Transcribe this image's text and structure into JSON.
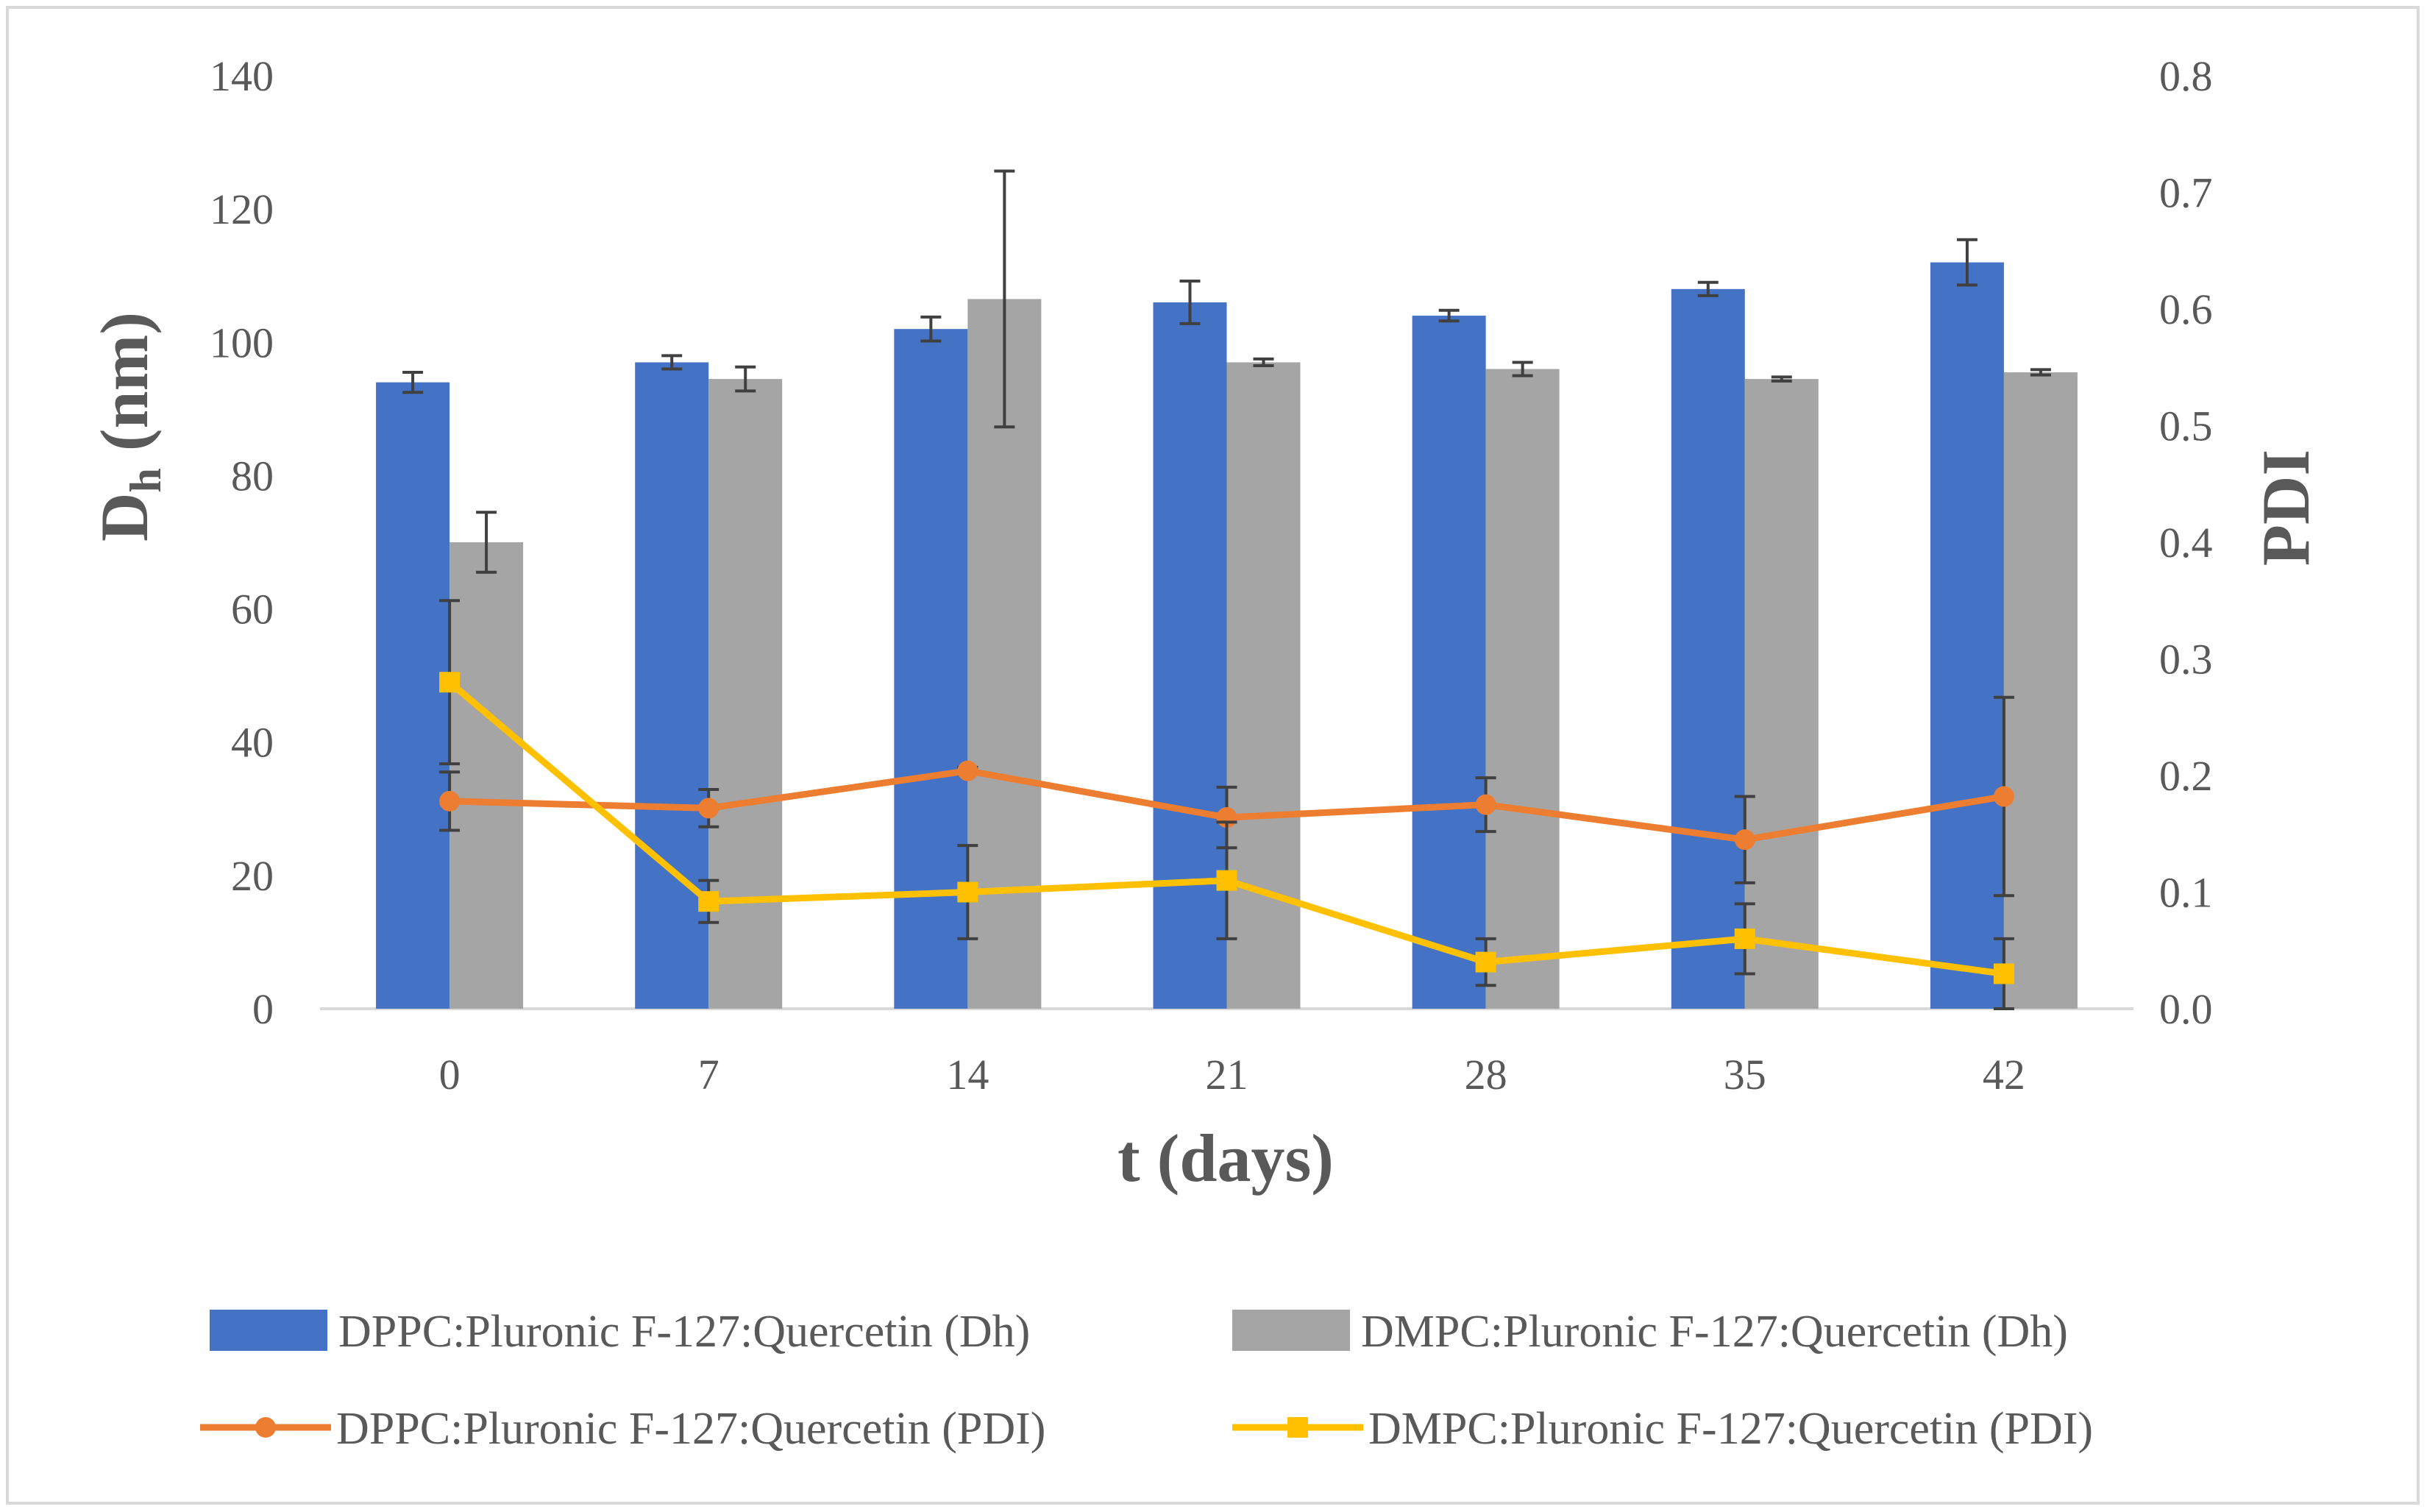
{
  "chart_data": {
    "type": "bar",
    "title": "",
    "xlabel": "t (days)",
    "ylabel": {
      "main": "D",
      "sub": "h",
      "suffix": " (nm)"
    },
    "y2label": "PDI",
    "categories": [
      "0",
      "7",
      "14",
      "21",
      "28",
      "35",
      "42"
    ],
    "ylim": [
      0,
      140
    ],
    "y2lim": [
      0,
      0.8
    ],
    "yticks": [
      "0",
      "20",
      "40",
      "60",
      "80",
      "100",
      "120",
      "140"
    ],
    "y2ticks": [
      "0.0",
      "0.1",
      "0.2",
      "0.3",
      "0.4",
      "0.5",
      "0.6",
      "0.7",
      "0.8"
    ],
    "legend_position": "bottom",
    "bar_series": [
      {
        "name": "DPPC:Pluronic F-127:Quercetin (Dh)",
        "color": "#4472c4",
        "values": [
          94,
          97,
          102,
          106,
          104,
          108,
          112
        ],
        "errors": [
          1.5,
          1.0,
          1.8,
          3.2,
          0.8,
          1.0,
          3.4
        ]
      },
      {
        "name": "DMPC:Pluronic F-127:Quercetin (Dh)",
        "color": "#a5a5a5",
        "values": [
          70,
          94.5,
          106.5,
          97,
          96,
          94.5,
          95.5
        ],
        "errors": [
          4.5,
          1.8,
          19.2,
          0.5,
          1.0,
          0.3,
          0.4
        ]
      }
    ],
    "line_series": [
      {
        "name": "DPPC:Pluronic F-127:Quercetin (PDI)",
        "color": "#ed7d31",
        "marker": "circle",
        "axis": "y2",
        "values": [
          0.178,
          0.172,
          0.204,
          0.164,
          0.175,
          0.145,
          0.182
        ],
        "errors": [
          0.025,
          0.016,
          0.003,
          0.026,
          0.023,
          0.037,
          0.085
        ]
      },
      {
        "name": "DMPC:Pluronic F-127:Quercetin (PDI)",
        "color": "#ffc000",
        "marker": "square",
        "axis": "y2",
        "values": [
          0.28,
          0.092,
          0.1,
          0.11,
          0.04,
          0.06,
          0.03
        ],
        "errors": [
          0.07,
          0.018,
          0.04,
          0.05,
          0.02,
          0.03,
          0.03
        ]
      }
    ]
  }
}
